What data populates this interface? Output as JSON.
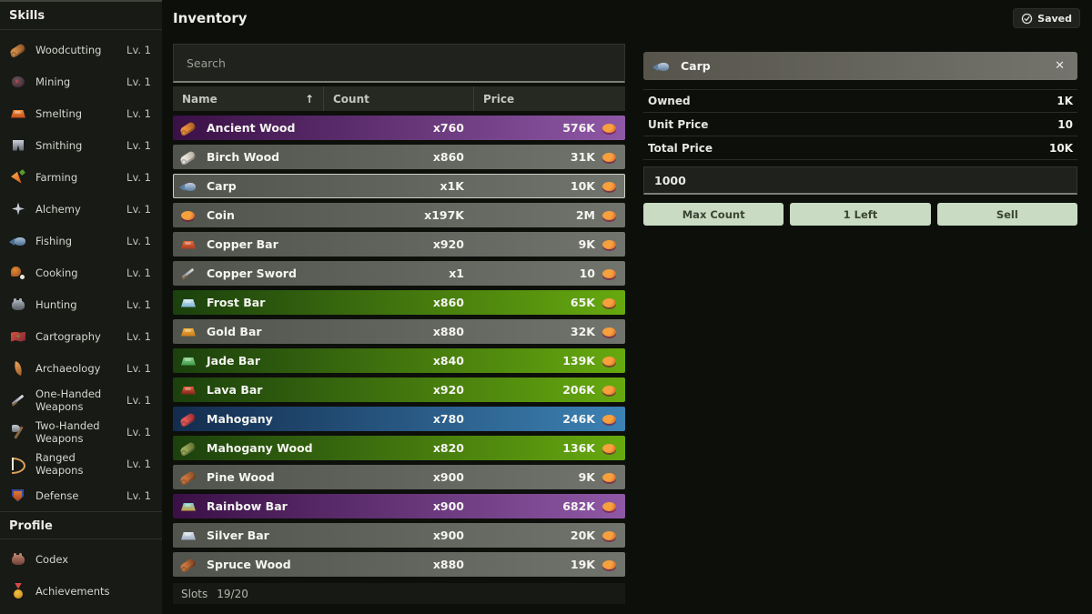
{
  "app": {
    "title": "Inventory",
    "saved_label": "Saved"
  },
  "palette": {
    "row_gray": [
      "#51544d",
      "#71746c"
    ],
    "row_purple": [
      "#3a1046",
      "#8f58a6"
    ],
    "row_green": [
      "#1b400d",
      "#67a90f"
    ],
    "row_blue": [
      "#132c4e",
      "#3c82b4"
    ],
    "selected_border": "#c9cfc3",
    "action_button_bg": "#c9dcc3",
    "action_button_text": "#3c4434",
    "sidebar_bg": "#181a15",
    "page_bg": "#0d0f0b"
  },
  "sidebar": {
    "skills_header": "Skills",
    "profile_header": "Profile",
    "skills": [
      {
        "label": "Woodcutting",
        "level": "Lv. 1",
        "icon": "log",
        "c1": "#cf8a48",
        "c2": "#8a4f22"
      },
      {
        "label": "Mining",
        "level": "Lv. 1",
        "icon": "rock",
        "c1": "#6b555e",
        "c2": "#332028"
      },
      {
        "label": "Smelting",
        "level": "Lv. 1",
        "icon": "ingot",
        "c1": "#f5923a",
        "c2": "#c2481c"
      },
      {
        "label": "Smithing",
        "level": "Lv. 1",
        "icon": "pants",
        "c1": "#cdd2da",
        "c2": "#5f646e"
      },
      {
        "label": "Farming",
        "level": "Lv. 1",
        "icon": "carrot",
        "c1": "#f59a40",
        "c2": "#d45c1a"
      },
      {
        "label": "Alchemy",
        "level": "Lv. 1",
        "icon": "star4",
        "c1": "#eef0f5",
        "c2": "#9aa0b5"
      },
      {
        "label": "Fishing",
        "level": "Lv. 1",
        "icon": "fish",
        "c1": "#a9c0d6",
        "c2": "#4c6e92"
      },
      {
        "label": "Cooking",
        "level": "Lv. 1",
        "icon": "drumstick",
        "c1": "#e08a36",
        "c2": "#9c4c1c"
      },
      {
        "label": "Hunting",
        "level": "Lv. 1",
        "icon": "creature",
        "c1": "#a8aeb6",
        "c2": "#565c64"
      },
      {
        "label": "Cartography",
        "level": "Lv. 1",
        "icon": "map",
        "c1": "#d95042",
        "c2": "#7e2730"
      },
      {
        "label": "Archaeology",
        "level": "Lv. 1",
        "icon": "feather",
        "c1": "#e8a860",
        "c2": "#a85c28"
      },
      {
        "label": "One-Handed Weapons",
        "level": "Lv. 1",
        "icon": "sword",
        "c1": "#e2e6ea",
        "c2": "#878d94"
      },
      {
        "label": "Two-Handed Weapons",
        "level": "Lv. 1",
        "icon": "axe",
        "c1": "#c8ccd2",
        "c2": "#70767e"
      },
      {
        "label": "Ranged Weapons",
        "level": "Lv. 1",
        "icon": "bow",
        "c1": "#d9a05a",
        "c2": "#f0ead8"
      },
      {
        "label": "Defense",
        "level": "Lv. 1",
        "icon": "shield",
        "c1": "#ea8434",
        "c2": "#a03c20"
      }
    ],
    "profile": [
      {
        "label": "Codex",
        "icon": "creature",
        "c1": "#b97f68",
        "c2": "#6e4038"
      },
      {
        "label": "Achievements",
        "icon": "medal",
        "c1": "#f2c240",
        "c2": "#d84848"
      },
      {
        "label": "",
        "icon": "gem",
        "c1": "#ef5aa8",
        "c2": "#b2246e",
        "cut_off": true
      }
    ]
  },
  "inventory": {
    "search_placeholder": "Search",
    "columns": {
      "name": "Name",
      "count": "Count",
      "price": "Price"
    },
    "sort_icon": "↑",
    "coin_icon": {
      "c1": "#f6a03e",
      "c2": "#cc4c20"
    },
    "slots_label": "Slots",
    "slots_value": "19/20",
    "items": [
      {
        "name": "Ancient Wood",
        "count": "x760",
        "price": "576K",
        "style": "purple",
        "icon": "log",
        "c1": "#e8903c",
        "c2": "#a85a20"
      },
      {
        "name": "Birch Wood",
        "count": "x860",
        "price": "31K",
        "style": "gray",
        "icon": "log",
        "c1": "#e8e4da",
        "c2": "#b0a898"
      },
      {
        "name": "Carp",
        "count": "x1K",
        "price": "10K",
        "style": "gray",
        "icon": "fish",
        "c1": "#c2cede",
        "c2": "#5c7ea2",
        "selected": true
      },
      {
        "name": "Coin",
        "count": "x197K",
        "price": "2M",
        "style": "gray",
        "icon": "coin",
        "c1": "#f6a03e",
        "c2": "#cc4c20"
      },
      {
        "name": "Copper Bar",
        "count": "x920",
        "price": "9K",
        "style": "gray",
        "icon": "ingot",
        "c1": "#e86a3a",
        "c2": "#a83a20"
      },
      {
        "name": "Copper Sword",
        "count": "x1",
        "price": "10",
        "style": "gray",
        "icon": "sword",
        "c1": "#d8dce0",
        "c2": "#8a8f94"
      },
      {
        "name": "Frost Bar",
        "count": "x860",
        "price": "65K",
        "style": "green",
        "icon": "ingot",
        "c1": "#cfe8f4",
        "c2": "#7ab0d0"
      },
      {
        "name": "Gold Bar",
        "count": "x880",
        "price": "32K",
        "style": "gray",
        "icon": "ingot",
        "c1": "#f4b43a",
        "c2": "#c87818"
      },
      {
        "name": "Jade Bar",
        "count": "x840",
        "price": "139K",
        "style": "green",
        "icon": "ingot",
        "c1": "#8ad08a",
        "c2": "#3a9a4a"
      },
      {
        "name": "Lava Bar",
        "count": "x920",
        "price": "206K",
        "style": "green",
        "icon": "ingot",
        "c1": "#e85a3a",
        "c2": "#7a2418"
      },
      {
        "name": "Mahogany",
        "count": "x780",
        "price": "246K",
        "style": "blue",
        "icon": "log",
        "c1": "#e05858",
        "c2": "#93262b"
      },
      {
        "name": "Mahogany Wood",
        "count": "x820",
        "price": "136K",
        "style": "green",
        "icon": "log",
        "c1": "#9aa85a",
        "c2": "#5a6a2e"
      },
      {
        "name": "Pine Wood",
        "count": "x900",
        "price": "9K",
        "style": "gray",
        "icon": "log",
        "c1": "#c8763e",
        "c2": "#8a4a22"
      },
      {
        "name": "Rainbow Bar",
        "count": "x900",
        "price": "682K",
        "style": "purple",
        "icon": "ingot",
        "c1": "#7ad0d0",
        "c2": "#d0a03a"
      },
      {
        "name": "Silver Bar",
        "count": "x900",
        "price": "20K",
        "style": "gray",
        "icon": "ingot",
        "c1": "#e0e8f0",
        "c2": "#9aa8c0"
      },
      {
        "name": "Spruce Wood",
        "count": "x880",
        "price": "19K",
        "style": "gray",
        "icon": "log",
        "c1": "#c8763e",
        "c2": "#7a3a1e"
      }
    ]
  },
  "detail": {
    "item_name": "Carp",
    "item_icon": {
      "icon": "fish",
      "c1": "#c2cede",
      "c2": "#5c7ea2"
    },
    "close_icon": "✕",
    "rows": [
      {
        "label": "Owned",
        "value": "1K"
      },
      {
        "label": "Unit Price",
        "value": "10"
      },
      {
        "label": "Total Price",
        "value": "10K"
      }
    ],
    "input_value": "1000",
    "buttons": [
      {
        "label": "Max Count"
      },
      {
        "label": "1 Left"
      },
      {
        "label": "Sell"
      }
    ]
  }
}
